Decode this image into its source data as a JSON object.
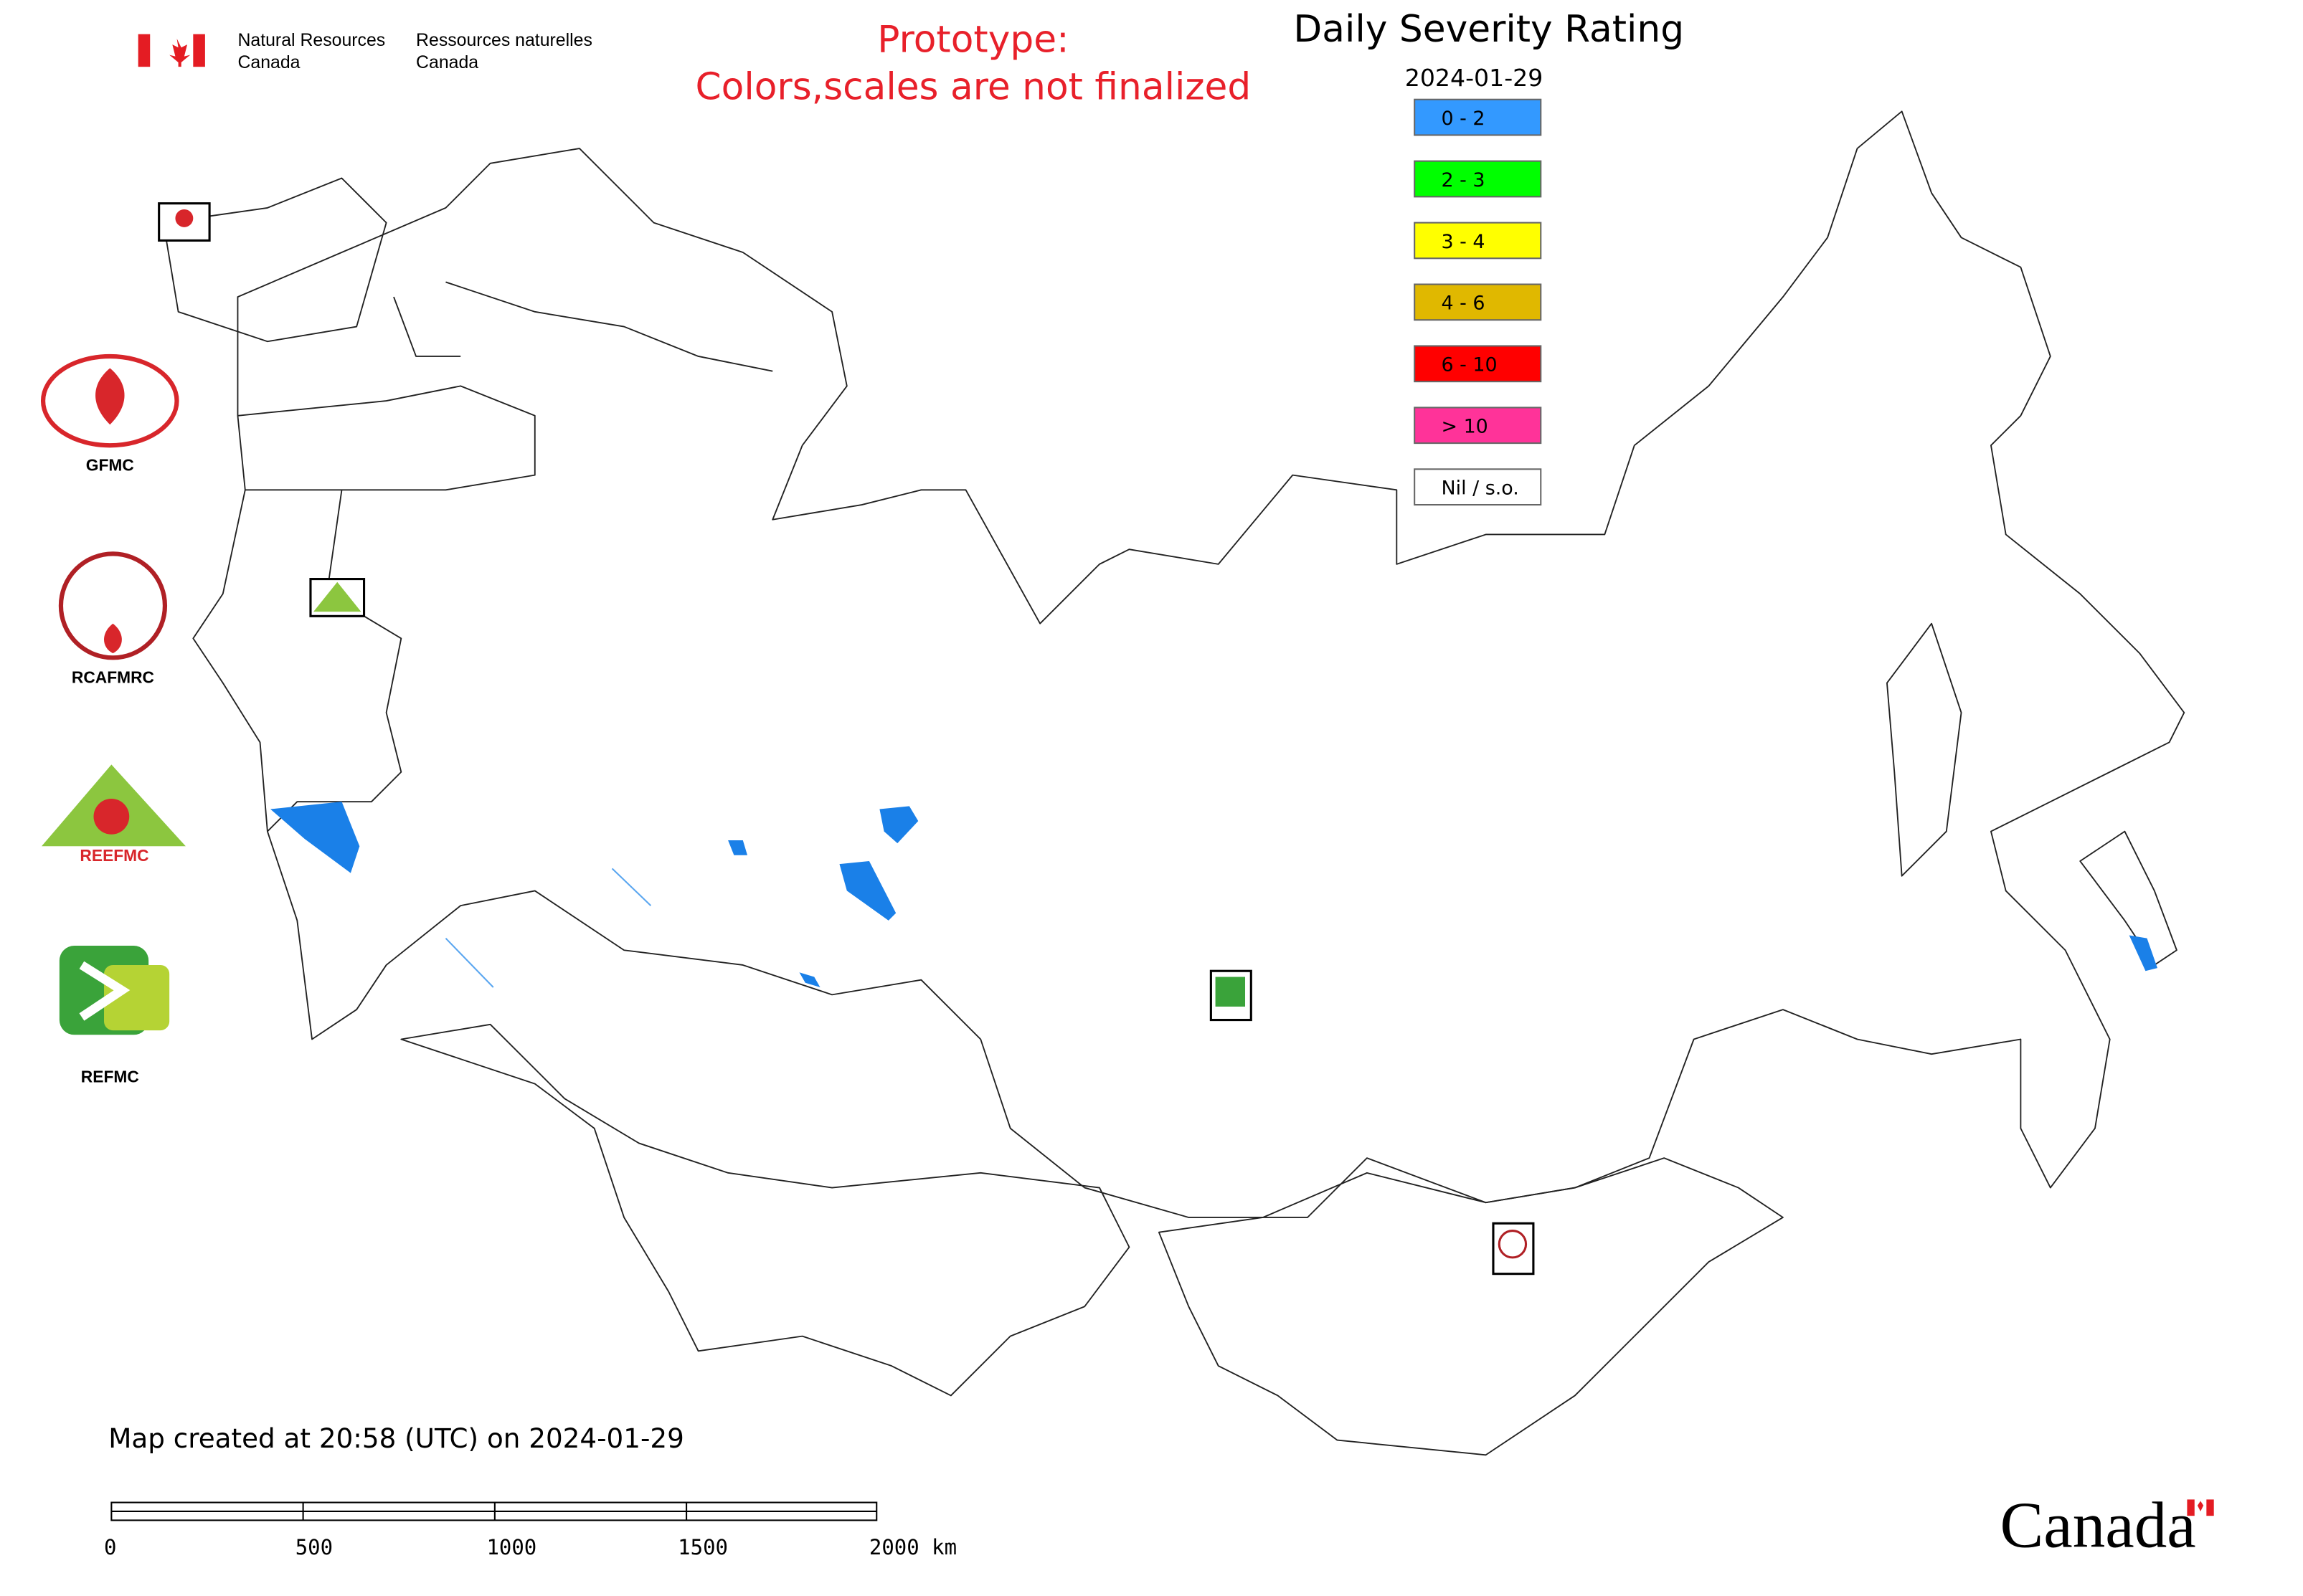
{
  "header": {
    "agency_en": [
      "Natural Resources",
      "Canada"
    ],
    "agency_fr": [
      "Ressources naturelles",
      "Canada"
    ],
    "notice": [
      "Prototype:",
      "Colors,scales are not finalized"
    ]
  },
  "legend": {
    "title": "Daily Severity Rating",
    "date": "2024-01-29",
    "items": [
      {
        "label": "0 - 2",
        "color": "#3399ff"
      },
      {
        "label": "2 - 3",
        "color": "#00ff00"
      },
      {
        "label": "3 - 4",
        "color": "#ffff00"
      },
      {
        "label": "4 - 6",
        "color": "#e0b800"
      },
      {
        "label": "6 - 10",
        "color": "#ff0000"
      },
      {
        "label": "> 10",
        "color": "#ff3399"
      },
      {
        "label": "Nil / s.o.",
        "color": "#ffffff"
      }
    ]
  },
  "logos": [
    "GFMC",
    "RCAFMRC",
    "REEFMC",
    "REFMC"
  ],
  "footer": {
    "created": "Map created at 20:58 (UTC) on 2024-01-29",
    "scale_labels": [
      "0",
      "500",
      "1000",
      "1500",
      "2000 km"
    ],
    "wordmark": "Canada"
  }
}
